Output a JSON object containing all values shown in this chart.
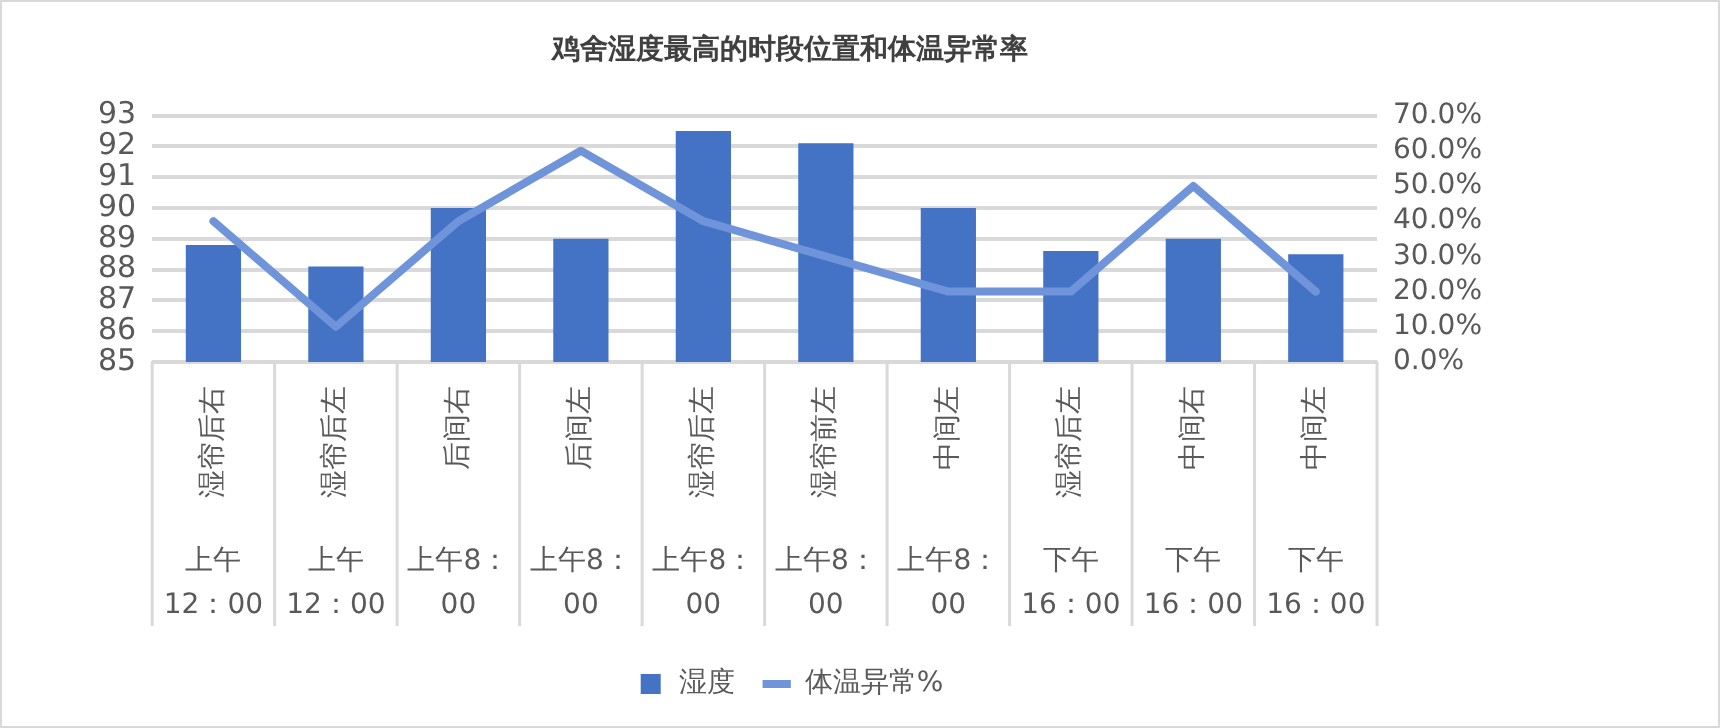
{
  "chart_data": {
    "type": "bar",
    "title": "鸡舍湿度最高的时段位置和体温异常率",
    "categories": [
      "湿帘后右上午12：00",
      "湿帘后左上午12：00",
      "后间右上午8：00",
      "后间左上午8：00",
      "湿帘后左上午8：00",
      "湿帘前左上午8：00",
      "中间左上午8：00",
      "湿帘后左下午16：00",
      "中间右下午16：00",
      "中间左下午16：00"
    ],
    "series": [
      {
        "name": "湿度",
        "color": "#4472c4",
        "values": [
          88.8,
          88.1,
          90,
          89,
          92.5,
          92.1,
          90,
          88.6,
          89,
          88.5
        ]
      },
      {
        "name": "体温异常%",
        "type": "line",
        "axis": "y2",
        "color": "#6f94da",
        "values": [
          40,
          10,
          40,
          60,
          40,
          30,
          20,
          20,
          50,
          20
        ]
      }
    ],
    "ylim": [
      85,
      93
    ],
    "yticks": [
      85,
      86,
      87,
      88,
      89,
      90,
      91,
      92,
      93
    ],
    "y2lim": [
      0,
      70
    ],
    "y2ticks": [
      {
        "value": 0,
        "label": "0.0%"
      },
      {
        "value": 10,
        "label": "10.0%"
      },
      {
        "value": 20,
        "label": "20.0%"
      },
      {
        "value": 30,
        "label": "30.0%"
      },
      {
        "value": 40,
        "label": "40.0%"
      },
      {
        "value": 50,
        "label": "50.0%"
      },
      {
        "value": 60,
        "label": "60.0%"
      },
      {
        "value": 70,
        "label": "70.0%"
      }
    ],
    "grid": "y",
    "legend": "bottom",
    "marker": "none"
  }
}
